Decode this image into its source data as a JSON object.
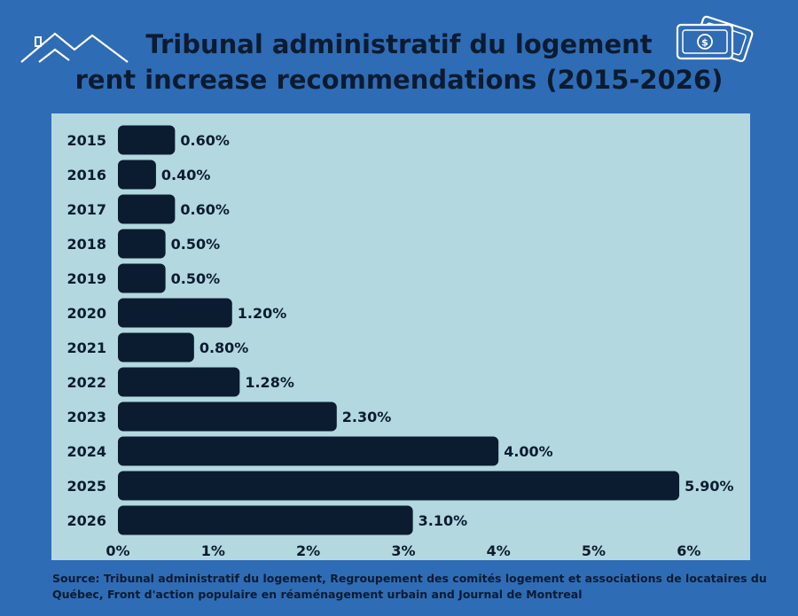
{
  "title_lines": [
    "Tribunal administratif du logement",
    "rent increase recommendations (2015-2026)"
  ],
  "source_text": "Source: Tribunal administratif du logement, Regroupement des comités logement et associations de locataires du Québec, Front d'action populaire en réaménagement urbain and Journal de Montreal",
  "icons": {
    "left": "house-outline-icon",
    "right": "money-bills-icon"
  },
  "colors": {
    "background": "#2f6cb6",
    "panel": "#b3d8e0",
    "bar": "#0b1c30",
    "text": "#0b1c30"
  },
  "chart_data": {
    "type": "bar",
    "orientation": "horizontal",
    "title": "Tribunal administratif du logement rent increase recommendations (2015-2026)",
    "categories": [
      "2015",
      "2016",
      "2017",
      "2018",
      "2019",
      "2020",
      "2021",
      "2022",
      "2023",
      "2024",
      "2025",
      "2026"
    ],
    "values": [
      0.6,
      0.4,
      0.6,
      0.5,
      0.5,
      1.2,
      0.8,
      1.28,
      2.3,
      4.0,
      5.9,
      3.1
    ],
    "data_labels": [
      "0.60%",
      "0.40%",
      "0.60%",
      "0.50%",
      "0.50%",
      "1.20%",
      "0.80%",
      "1.28%",
      "2.30%",
      "4.00%",
      "5.90%",
      "3.10%"
    ],
    "x_ticks": [
      0,
      1,
      2,
      3,
      4,
      5,
      6
    ],
    "x_tick_labels": [
      "0%",
      "1%",
      "2%",
      "3%",
      "4%",
      "5%",
      "6%"
    ],
    "xlim": [
      0,
      6
    ],
    "xlabel": "",
    "ylabel": "",
    "grid": false,
    "legend": "none"
  }
}
